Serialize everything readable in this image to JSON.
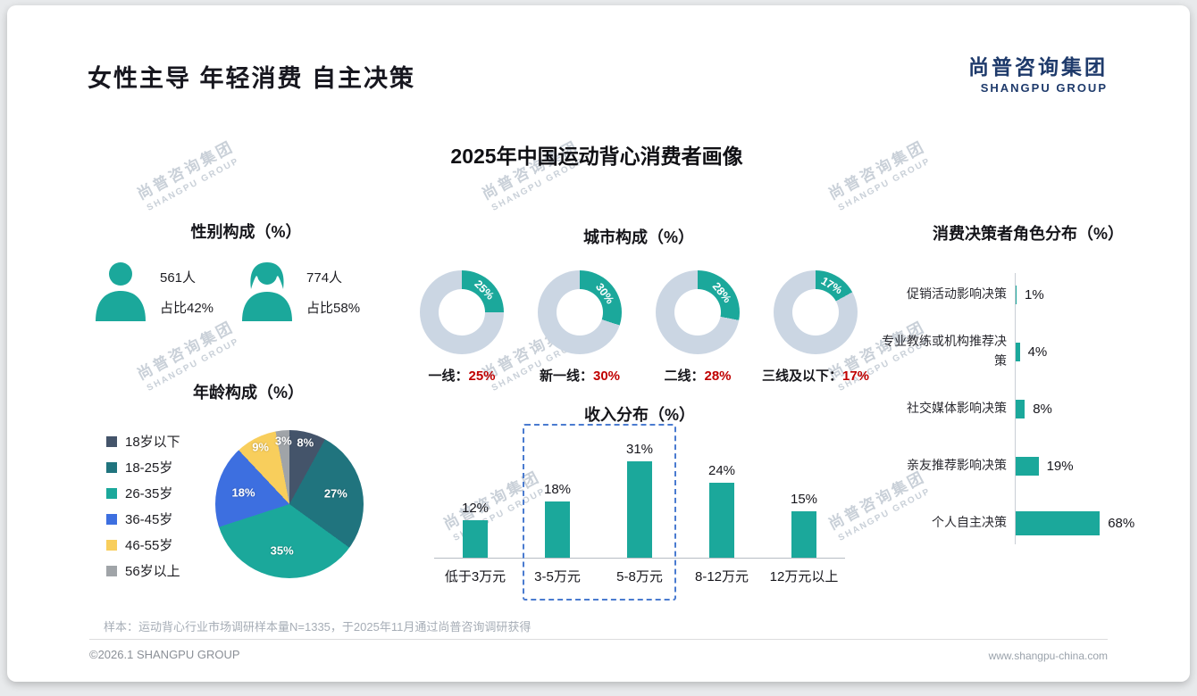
{
  "page": {
    "title": "女性主导 年轻消费 自主决策",
    "logo": {
      "cn": "尚普咨询集团",
      "en": "SHANGPU GROUP"
    },
    "watermark": {
      "cn": "尚普咨询集团",
      "en": "SHANGPU GROUP"
    },
    "footnote": "样本：运动背心行业市场调研样本量N=1335，于2025年11月通过尚普咨询调研获得",
    "footer_left": "©2026.1 SHANGPU GROUP",
    "footer_right": "www.shangpu-china.com"
  },
  "main_title": "2025年中国运动背心消费者画像",
  "colors": {
    "teal": "#1BA89B",
    "donut_rest": "#CBD6E3",
    "red": "#C00000",
    "navy": "#1E3A6B"
  },
  "chart_data": [
    {
      "id": "gender",
      "type": "table",
      "title": "性别构成（%）",
      "items": [
        {
          "icon": "male-icon",
          "count": "561人",
          "share": "占比42%"
        },
        {
          "icon": "female-icon",
          "count": "774人",
          "share": "占比58%"
        }
      ]
    },
    {
      "id": "age",
      "type": "pie",
      "title": "年龄构成（%）",
      "labels": [
        "18岁以下",
        "18-25岁",
        "26-35岁",
        "36-45岁",
        "46-55岁",
        "56岁以上"
      ],
      "values": [
        8,
        27,
        35,
        18,
        9,
        3
      ],
      "colors": [
        "#44546A",
        "#20747E",
        "#1BA89B",
        "#3D6FE0",
        "#F8CE5C",
        "#A0A4A8"
      ],
      "legend_position": "left"
    },
    {
      "id": "city",
      "type": "pie",
      "variant": "donut",
      "title": "城市构成（%）",
      "items": [
        {
          "label": "一线",
          "value": 25
        },
        {
          "label": "新一线",
          "value": 30
        },
        {
          "label": "二线",
          "value": 28
        },
        {
          "label": "三线及以下",
          "value": 17
        }
      ],
      "slice_color": "#1BA89B",
      "rest_color": "#CBD6E3",
      "value_color": "#C00000"
    },
    {
      "id": "income",
      "type": "bar",
      "title": "收入分布（%）",
      "categories": [
        "低于3万元",
        "3-5万元",
        "5-8万元",
        "8-12万元",
        "12万元以上"
      ],
      "values": [
        12,
        18,
        31,
        24,
        15
      ],
      "bar_color": "#1BA89B",
      "highlight": {
        "categories": [
          "3-5万元",
          "5-8万元"
        ],
        "border": "#4A7BD0"
      }
    },
    {
      "id": "decision",
      "type": "bar",
      "orientation": "horizontal",
      "title": "消费决策者角色分布（%）",
      "categories": [
        "促销活动影响决策",
        "专业教练或机构推荐决策",
        "社交媒体影响决策",
        "亲友推荐影响决策",
        "个人自主决策"
      ],
      "values": [
        1,
        4,
        8,
        19,
        68
      ],
      "bar_color": "#1BA89B"
    }
  ]
}
